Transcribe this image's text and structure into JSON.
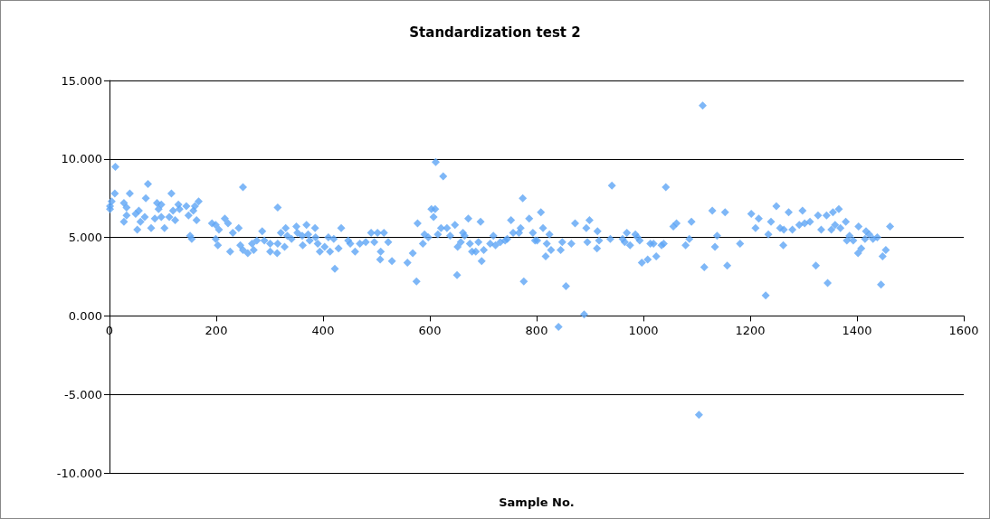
{
  "chart_data": {
    "type": "scatter",
    "title": "Standardization test 2",
    "xlabel": "Sample No.",
    "xlim": [
      0,
      1600
    ],
    "xticks": [
      0,
      200,
      400,
      600,
      800,
      1000,
      1200,
      1400,
      1600
    ],
    "ylim": [
      -10,
      15
    ],
    "yticks": [
      {
        "value": -10,
        "label": "-10.000"
      },
      {
        "value": -5,
        "label": "-5.000"
      },
      {
        "value": 0,
        "label": "0.000"
      },
      {
        "value": 5,
        "label": "5.000"
      },
      {
        "value": 10,
        "label": "10.000"
      },
      {
        "value": 15,
        "label": "15.000"
      }
    ],
    "grid": "y",
    "marker": "diamond",
    "series": [
      {
        "color": "#5ea5f5",
        "x": [
          1,
          1,
          4,
          10,
          11,
          27,
          27,
          32,
          32,
          38,
          49,
          52,
          55,
          58,
          66,
          68,
          72,
          78,
          85,
          89,
          92,
          97,
          97,
          103,
          112,
          116,
          119,
          123,
          129,
          131,
          144,
          148,
          151,
          154,
          157,
          160,
          163,
          167,
          192,
          199,
          199,
          203,
          205,
          216,
          222,
          226,
          231,
          242,
          245,
          250,
          250,
          259,
          267,
          270,
          276,
          286,
          290,
          301,
          301,
          314,
          315,
          315,
          321,
          328,
          330,
          333,
          341,
          350,
          352,
          361,
          362,
          369,
          372,
          375,
          385,
          386,
          390,
          394,
          403,
          410,
          413,
          420,
          422,
          429,
          434,
          447,
          451,
          460,
          469,
          480,
          490,
          496,
          502,
          507,
          508,
          514,
          522,
          529,
          558,
          568,
          575,
          577,
          587,
          590,
          597,
          603,
          610,
          607,
          611,
          615,
          621,
          625,
          632,
          638,
          647,
          651,
          652,
          658,
          662,
          665,
          672,
          675,
          679,
          686,
          691,
          695,
          697,
          701,
          713,
          719,
          723,
          732,
          741,
          745,
          752,
          756,
          767,
          770,
          774,
          776,
          786,
          793,
          797,
          801,
          808,
          812,
          817,
          819,
          824,
          827,
          841,
          845,
          848,
          855,
          865,
          872,
          889,
          893,
          895,
          899,
          913,
          914,
          917,
          938,
          941,
          961,
          965,
          969,
          975,
          985,
          989,
          993,
          997,
          1008,
          1013,
          1019,
          1024,
          1034,
          1038,
          1042,
          1056,
          1062,
          1079,
          1090,
          1086,
          1104,
          1111,
          1114,
          1129,
          1138,
          1134,
          1153,
          1157,
          1181,
          1202,
          1210,
          1216,
          1229,
          1234,
          1239,
          1249,
          1256,
          1263,
          1262,
          1272,
          1279,
          1292,
          1298,
          1302,
          1312,
          1323,
          1327,
          1333,
          1343,
          1345,
          1352,
          1355,
          1359,
          1366,
          1369,
          1379,
          1381,
          1386,
          1393,
          1403,
          1402,
          1408,
          1415,
          1417,
          1423,
          1430,
          1438,
          1445,
          1448,
          1454,
          1462
        ],
        "values": [
          7.0,
          6.8,
          7.3,
          7.8,
          9.5,
          7.2,
          6.0,
          6.9,
          6.4,
          7.8,
          6.5,
          5.5,
          6.7,
          6.0,
          6.3,
          7.5,
          8.4,
          5.6,
          6.2,
          7.2,
          6.8,
          7.1,
          6.3,
          5.6,
          6.3,
          7.8,
          6.7,
          6.1,
          7.1,
          6.8,
          7.0,
          6.4,
          5.1,
          4.9,
          6.7,
          7.0,
          6.1,
          7.3,
          5.9,
          5.8,
          4.9,
          4.5,
          5.5,
          6.2,
          5.9,
          4.1,
          5.3,
          5.6,
          4.5,
          8.2,
          4.2,
          4.0,
          4.6,
          4.2,
          4.8,
          5.4,
          4.8,
          4.6,
          4.1,
          4.0,
          6.9,
          4.6,
          5.3,
          4.4,
          5.6,
          5.1,
          4.9,
          5.7,
          5.3,
          5.1,
          4.5,
          5.8,
          5.2,
          4.8,
          5.6,
          5.0,
          4.6,
          4.1,
          4.4,
          5.0,
          4.1,
          4.9,
          3.0,
          4.3,
          5.6,
          4.8,
          4.6,
          4.1,
          4.6,
          4.7,
          5.3,
          4.7,
          5.3,
          3.6,
          4.1,
          5.3,
          4.7,
          3.5,
          3.4,
          4.0,
          2.2,
          5.9,
          4.6,
          5.2,
          5.0,
          6.8,
          6.8,
          6.3,
          9.8,
          5.2,
          5.6,
          8.9,
          5.6,
          5.1,
          5.8,
          2.6,
          4.4,
          4.7,
          5.3,
          5.1,
          6.2,
          4.6,
          4.1,
          4.1,
          4.7,
          6.0,
          3.5,
          4.2,
          4.6,
          5.1,
          4.5,
          4.7,
          4.8,
          4.9,
          6.1,
          5.3,
          5.3,
          5.6,
          7.5,
          2.2,
          6.2,
          5.3,
          4.8,
          4.8,
          6.6,
          5.6,
          3.8,
          4.6,
          5.2,
          4.2,
          -0.7,
          4.2,
          4.7,
          1.9,
          4.6,
          5.9,
          0.1,
          5.6,
          4.7,
          6.1,
          4.3,
          5.4,
          4.8,
          4.9,
          8.3,
          4.9,
          4.7,
          5.3,
          4.5,
          5.2,
          5.0,
          4.8,
          3.4,
          3.6,
          4.6,
          4.6,
          3.8,
          4.5,
          4.6,
          8.2,
          5.7,
          5.9,
          4.5,
          6.0,
          4.9,
          -6.3,
          13.4,
          3.1,
          6.7,
          5.1,
          4.4,
          6.6,
          3.2,
          4.6,
          6.5,
          5.6,
          6.2,
          1.3,
          5.2,
          6.0,
          7.0,
          5.6,
          5.5,
          4.5,
          6.6,
          5.5,
          5.8,
          6.7,
          5.9,
          6.0,
          3.2,
          6.4,
          5.5,
          6.4,
          2.1,
          5.5,
          6.6,
          5.8,
          6.8,
          5.6,
          6.0,
          4.8,
          5.1,
          4.8,
          5.7,
          4.0,
          4.3,
          4.9,
          5.4,
          5.2,
          4.9,
          5.0,
          2.0,
          3.8,
          4.2,
          5.7
        ]
      }
    ]
  }
}
